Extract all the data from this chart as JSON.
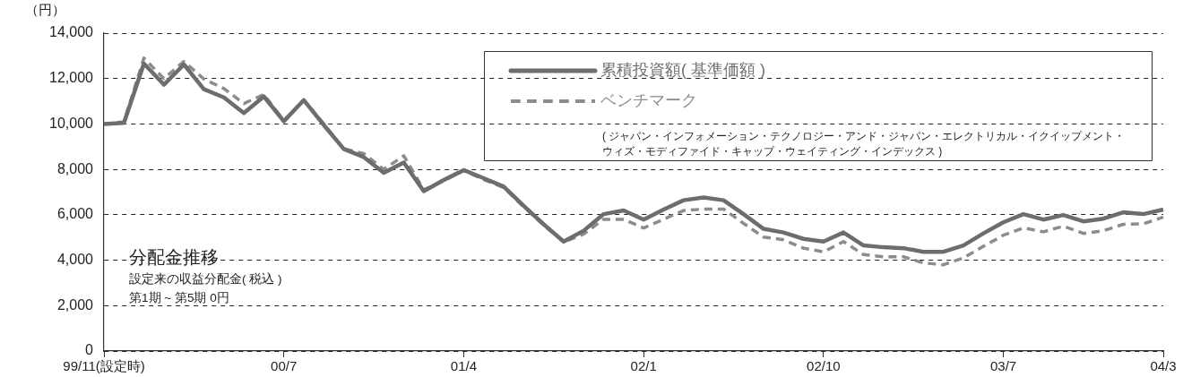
{
  "chart_data": {
    "type": "line",
    "ylabel": "（円）",
    "categories": [
      "99/11(設定時)",
      null,
      null,
      null,
      null,
      null,
      null,
      null,
      null,
      "00/7",
      null,
      null,
      null,
      null,
      null,
      null,
      null,
      null,
      "01/4",
      null,
      null,
      null,
      null,
      null,
      null,
      null,
      null,
      "02/1",
      null,
      null,
      null,
      null,
      null,
      null,
      null,
      null,
      "02/10",
      null,
      null,
      null,
      null,
      null,
      null,
      null,
      null,
      "03/7",
      null,
      null,
      null,
      null,
      null,
      null,
      null,
      "04/3"
    ],
    "series": [
      {
        "name": "累積投資額( 基準価額 )",
        "color": "#6d6d6f",
        "line_style": "solid",
        "values": [
          10000,
          10050,
          12660,
          11730,
          12620,
          11530,
          11170,
          10480,
          11210,
          10120,
          11050,
          9950,
          8900,
          8540,
          7850,
          8300,
          7040,
          7530,
          7970,
          7610,
          7240,
          6390,
          5580,
          4820,
          5300,
          6030,
          6190,
          5790,
          6230,
          6640,
          6760,
          6640,
          6030,
          5380,
          5220,
          4940,
          4820,
          5220,
          4650,
          4570,
          4530,
          4370,
          4370,
          4650,
          5180,
          5670,
          6030,
          5790,
          5990,
          5710,
          5830,
          6110,
          6030,
          6230
        ]
      },
      {
        "name": "ベンチマーク",
        "color": "#8c8c8c",
        "line_style": "dashed",
        "values": [
          10000,
          10100,
          12900,
          12000,
          12750,
          11980,
          11560,
          10900,
          11300,
          10150,
          11050,
          10000,
          8900,
          8700,
          8000,
          8600,
          7100,
          7500,
          7950,
          7550,
          7200,
          6350,
          5550,
          4800,
          5150,
          5800,
          5800,
          5420,
          5800,
          6190,
          6250,
          6250,
          5620,
          5020,
          4900,
          4530,
          4370,
          4820,
          4250,
          4150,
          4150,
          3880,
          3800,
          4100,
          4610,
          5100,
          5420,
          5250,
          5500,
          5180,
          5300,
          5580,
          5600,
          5900
        ]
      }
    ],
    "ylim": [
      0,
      14000
    ],
    "yticks": [
      {
        "value": 0,
        "label": "0"
      },
      {
        "value": 2000,
        "label": "2,000"
      },
      {
        "value": 4000,
        "label": "4,000"
      },
      {
        "value": 6000,
        "label": "6,000"
      },
      {
        "value": 8000,
        "label": "8,000"
      },
      {
        "value": 10000,
        "label": "10,000"
      },
      {
        "value": 12000,
        "label": "12,000"
      },
      {
        "value": 14000,
        "label": "14,000"
      }
    ],
    "grid": "y",
    "legend": "top right",
    "annotations": [
      "分配金推移",
      "設定来の収益分配金( 税込 )",
      "第1期 ~ 第5期 0円",
      "( ジャパン・インフォメーション・テクノロジー・アンド・ジャパン・エレクトリカル・イクイップメント・ウィズ・モディファイド・キャップ・ウェイティング・インデックス )"
    ]
  }
}
